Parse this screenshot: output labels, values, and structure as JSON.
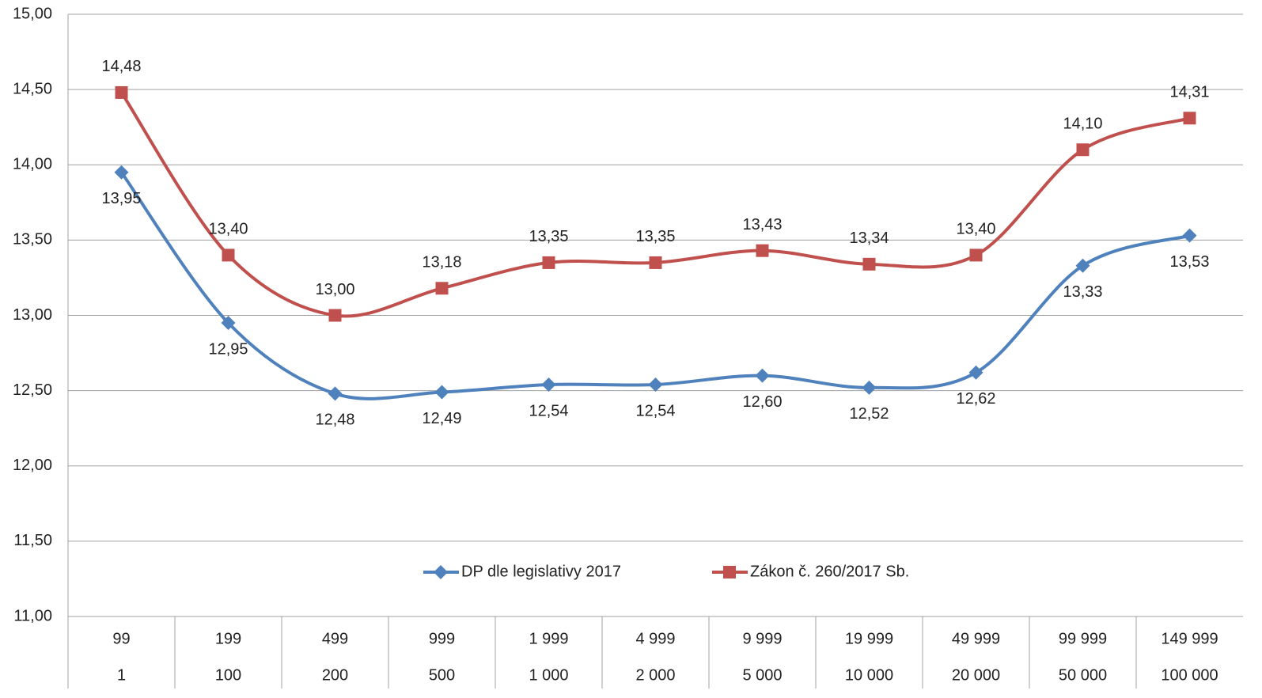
{
  "chart_data": {
    "type": "line",
    "categories": [
      [
        "99",
        "1"
      ],
      [
        "199",
        "100"
      ],
      [
        "499",
        "200"
      ],
      [
        "999",
        "500"
      ],
      [
        "1 999",
        "1 000"
      ],
      [
        "4 999",
        "2 000"
      ],
      [
        "9 999",
        "5 000"
      ],
      [
        "19 999",
        "10 000"
      ],
      [
        "49 999",
        "20 000"
      ],
      [
        "99 999",
        "50 000"
      ],
      [
        "149 999",
        "100 000"
      ]
    ],
    "series": [
      {
        "name": "DP dle legislativy 2017",
        "color": "#4f81bd",
        "marker": "diamond",
        "values": [
          13.95,
          12.95,
          12.48,
          12.49,
          12.54,
          12.54,
          12.6,
          12.52,
          12.62,
          13.33,
          13.53
        ],
        "value_labels": [
          "13,95",
          "12,95",
          "12,48",
          "12,49",
          "12,54",
          "12,54",
          "12,60",
          "12,52",
          "12,62",
          "13,33",
          "13,53"
        ]
      },
      {
        "name": "Zákon č. 260/2017 Sb.",
        "color": "#c0504d",
        "marker": "square",
        "values": [
          14.48,
          13.4,
          13.0,
          13.18,
          13.35,
          13.35,
          13.43,
          13.34,
          13.4,
          14.1,
          14.31
        ],
        "value_labels": [
          "14,48",
          "13,40",
          "13,00",
          "13,18",
          "13,35",
          "13,35",
          "13,43",
          "13,34",
          "13,40",
          "14,10",
          "14,31"
        ]
      }
    ],
    "ylim": [
      11,
      15
    ],
    "yticks": [
      {
        "value": 11,
        "label": "11,00"
      },
      {
        "value": 11.5,
        "label": "11,50"
      },
      {
        "value": 12,
        "label": "12,00"
      },
      {
        "value": 12.5,
        "label": "12,50"
      },
      {
        "value": 13,
        "label": "13,00"
      },
      {
        "value": 13.5,
        "label": "13,50"
      },
      {
        "value": 14,
        "label": "14,00"
      },
      {
        "value": 14.5,
        "label": "14,50"
      },
      {
        "value": 15,
        "label": "15,00"
      }
    ],
    "grid": true,
    "legend": "inside-bottom",
    "smooth": true
  }
}
